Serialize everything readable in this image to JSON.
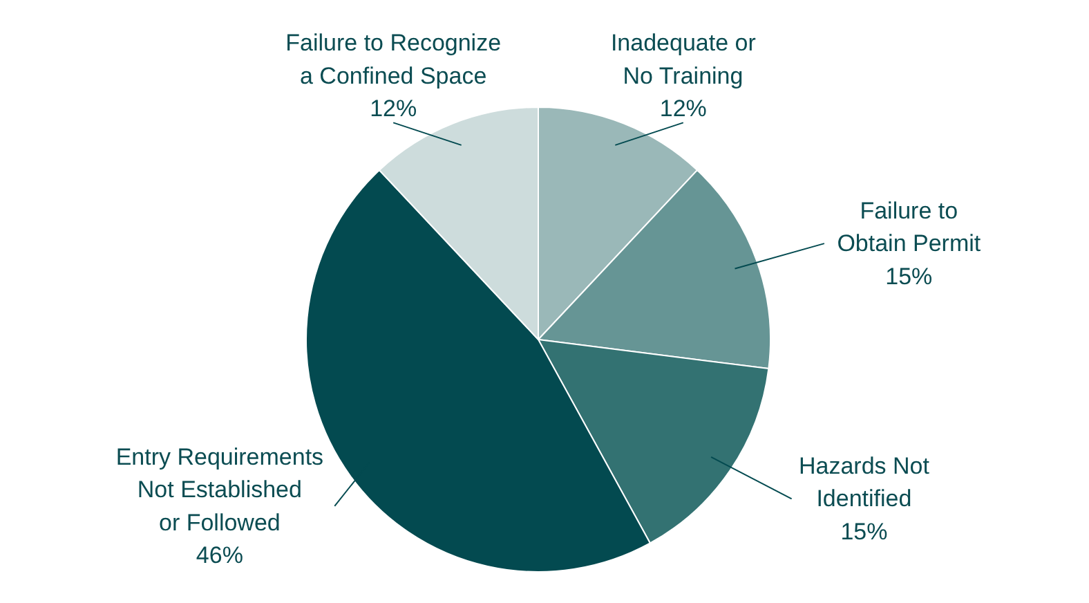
{
  "chart_data": {
    "type": "pie",
    "categories": [
      "Inadequate or\nNo Training",
      "Failure to\nObtain Permit",
      "Hazards Not\nIdentified",
      "Entry Requirements\nNot Established\nor Followed",
      "Failure to Recognize\na Confined Space"
    ],
    "values": [
      12,
      15,
      15,
      46,
      12
    ],
    "value_labels": [
      "12%",
      "15%",
      "15%",
      "46%",
      "12%"
    ],
    "colors": [
      "#9ab8b8",
      "#669595",
      "#337272",
      "#034a50",
      "#cddcdc"
    ]
  }
}
